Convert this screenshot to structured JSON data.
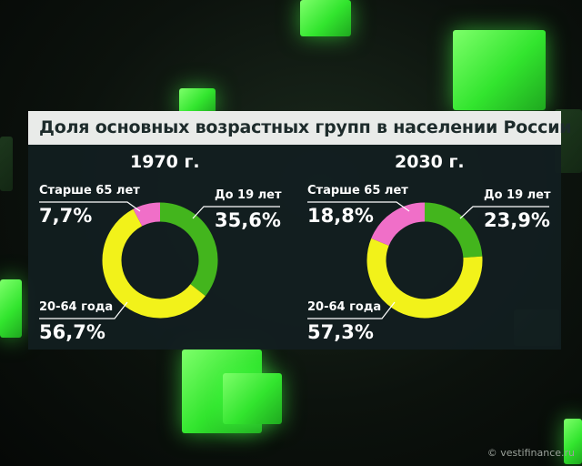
{
  "title": "Доля основных возрастных групп в населении России",
  "watermark": "© vestifinance.ru",
  "colors": {
    "under19": "#43b51d",
    "age20_64": "#f2f21a",
    "over65": "#f06fc8"
  },
  "chart_data": [
    {
      "type": "pie",
      "title": "1970 г.",
      "categories": [
        "До 19 лет",
        "20-64 года",
        "Старше 65 лет"
      ],
      "values": [
        35.6,
        56.7,
        7.7
      ],
      "value_labels": [
        "35,6%",
        "56,7%",
        "7,7%"
      ],
      "style": "donut"
    },
    {
      "type": "pie",
      "title": "2030 г.",
      "categories": [
        "До 19 лет",
        "20-64 года",
        "Старше 65 лет"
      ],
      "values": [
        23.9,
        57.3,
        18.8
      ],
      "value_labels": [
        "23,9%",
        "57,3%",
        "18,8%"
      ],
      "style": "donut"
    }
  ]
}
